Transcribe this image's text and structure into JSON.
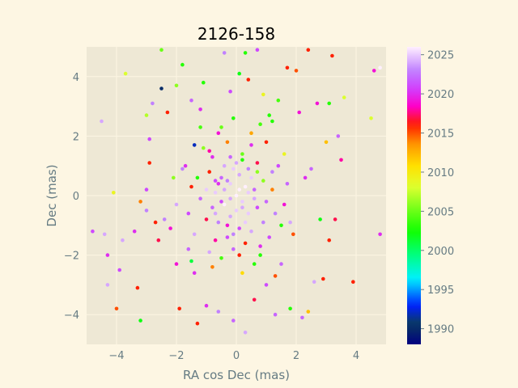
{
  "chart_data": {
    "type": "scatter",
    "title": "2126-158",
    "xlabel": "RA cos Dec (mas)",
    "ylabel": "Dec (mas)",
    "xlim": [
      -5,
      5
    ],
    "ylim": [
      -5,
      5
    ],
    "x_ticks": [
      -4,
      -2,
      0,
      2,
      4
    ],
    "y_ticks": [
      -4,
      -2,
      0,
      2,
      4
    ],
    "grid": true,
    "colorbar": {
      "label": "",
      "range": [
        1988,
        2026
      ],
      "ticks": [
        1990,
        1995,
        2000,
        2005,
        2010,
        2015,
        2020,
        2025
      ],
      "colormap": "gist_ncar"
    },
    "points": [
      [
        -4.8,
        -1.2,
        2021
      ],
      [
        -4.5,
        2.5,
        2024
      ],
      [
        -4.4,
        -1.3,
        2024
      ],
      [
        -4.3,
        -2.0,
        2020
      ],
      [
        -4.3,
        -3.0,
        2024
      ],
      [
        -4.1,
        0.1,
        2009
      ],
      [
        -4.0,
        -3.8,
        2015
      ],
      [
        -3.9,
        -2.5,
        2021
      ],
      [
        -3.8,
        -1.5,
        2024
      ],
      [
        -3.7,
        4.1,
        2008
      ],
      [
        -3.4,
        -1.2,
        2020
      ],
      [
        -3.3,
        -3.1,
        2016
      ],
      [
        -3.2,
        -0.2,
        2014
      ],
      [
        -3.2,
        -4.2,
        2002
      ],
      [
        -3.0,
        2.7,
        2007
      ],
      [
        -3.0,
        0.2,
        2021
      ],
      [
        -3.0,
        -0.5,
        2023
      ],
      [
        -2.9,
        1.9,
        2021
      ],
      [
        -2.9,
        1.1,
        2016
      ],
      [
        -2.8,
        3.1,
        2023
      ],
      [
        -2.7,
        -0.9,
        2016
      ],
      [
        -2.6,
        -1.5,
        2017
      ],
      [
        -2.5,
        3.6,
        1990
      ],
      [
        -2.5,
        4.9,
        2005
      ],
      [
        -2.4,
        -0.8,
        2023
      ],
      [
        -2.3,
        2.8,
        2016
      ],
      [
        -2.2,
        -1.1,
        2019
      ],
      [
        -2.1,
        0.6,
        2006
      ],
      [
        -2.0,
        3.7,
        2006
      ],
      [
        -2.0,
        -2.3,
        2019
      ],
      [
        -1.9,
        -3.8,
        2016
      ],
      [
        -1.8,
        4.4,
        2003
      ],
      [
        -1.7,
        1.0,
        2020
      ],
      [
        -1.6,
        -1.8,
        2022
      ],
      [
        -1.5,
        -2.2,
        2001
      ],
      [
        -1.5,
        3.2,
        2022
      ],
      [
        -1.4,
        1.7,
        1992
      ],
      [
        -1.3,
        -4.3,
        2016
      ],
      [
        -1.2,
        2.9,
        2020
      ],
      [
        -1.1,
        3.8,
        2003
      ],
      [
        -1.0,
        -3.7,
        2020
      ],
      [
        -0.9,
        1.5,
        2018
      ],
      [
        -0.8,
        -2.4,
        2014
      ],
      [
        -0.7,
        0.5,
        2021
      ],
      [
        -0.6,
        -3.9,
        2023
      ],
      [
        -0.5,
        2.3,
        2005
      ],
      [
        -0.4,
        4.8,
        2023
      ],
      [
        -0.3,
        -1.0,
        2019
      ],
      [
        -0.2,
        3.5,
        2021
      ],
      [
        -0.1,
        -4.2,
        2022
      ],
      [
        0.0,
        1.1,
        2024
      ],
      [
        0.1,
        4.1,
        2002
      ],
      [
        0.2,
        -2.6,
        2011
      ],
      [
        0.3,
        4.8,
        2003
      ],
      [
        0.3,
        -4.6,
        2024
      ],
      [
        0.4,
        3.9,
        2016
      ],
      [
        0.5,
        2.1,
        2013
      ],
      [
        0.6,
        -3.5,
        2017
      ],
      [
        0.7,
        4.9,
        2021
      ],
      [
        0.8,
        -2.0,
        2003
      ],
      [
        0.9,
        3.4,
        2009
      ],
      [
        1.0,
        -3.0,
        2021
      ],
      [
        1.1,
        2.7,
        2003
      ],
      [
        1.2,
        0.8,
        2023
      ],
      [
        1.3,
        -4.0,
        2022
      ],
      [
        1.4,
        3.2,
        2004
      ],
      [
        1.5,
        -2.3,
        2022
      ],
      [
        1.6,
        1.4,
        2009
      ],
      [
        1.7,
        4.3,
        2016
      ],
      [
        1.8,
        -3.8,
        2003
      ],
      [
        1.9,
        -1.3,
        2015
      ],
      [
        2.0,
        4.2,
        2015
      ],
      [
        2.1,
        2.8,
        2019
      ],
      [
        2.2,
        -4.1,
        2022
      ],
      [
        2.3,
        0.6,
        2020
      ],
      [
        2.4,
        4.9,
        2016
      ],
      [
        2.4,
        -3.9,
        2012
      ],
      [
        2.5,
        0.9,
        2022
      ],
      [
        2.6,
        -2.9,
        2024
      ],
      [
        2.7,
        3.1,
        2019
      ],
      [
        2.8,
        -0.8,
        2002
      ],
      [
        2.9,
        -2.8,
        2016
      ],
      [
        3.0,
        1.8,
        2012
      ],
      [
        3.1,
        -1.5,
        2016
      ],
      [
        3.1,
        3.1,
        2003
      ],
      [
        3.2,
        4.7,
        2016
      ],
      [
        3.3,
        -0.8,
        2017
      ],
      [
        3.4,
        2.0,
        2022
      ],
      [
        3.5,
        1.2,
        2018
      ],
      [
        3.6,
        3.3,
        2008
      ],
      [
        3.9,
        -2.9,
        2016
      ],
      [
        4.5,
        2.6,
        2008
      ],
      [
        4.6,
        4.2,
        2019
      ],
      [
        4.8,
        4.3,
        2026
      ],
      [
        4.8,
        -1.3,
        2020
      ],
      [
        -2.0,
        -0.3,
        2024
      ],
      [
        -1.8,
        0.9,
        2023
      ],
      [
        -1.6,
        -0.6,
        2021
      ],
      [
        -1.5,
        0.3,
        2016
      ],
      [
        -1.4,
        -1.3,
        2024
      ],
      [
        -1.3,
        0.6,
        2003
      ],
      [
        -1.2,
        -0.1,
        2022
      ],
      [
        -1.1,
        1.6,
        2006
      ],
      [
        -1.0,
        -0.8,
        2017
      ],
      [
        -1.0,
        0.2,
        2025
      ],
      [
        -0.9,
        -1.9,
        2024
      ],
      [
        -0.9,
        0.8,
        2016
      ],
      [
        -0.8,
        -0.4,
        2022
      ],
      [
        -0.8,
        1.3,
        2020
      ],
      [
        -0.7,
        -1.5,
        2018
      ],
      [
        -0.7,
        0.1,
        2025
      ],
      [
        -0.6,
        2.1,
        2019
      ],
      [
        -0.6,
        -0.9,
        2023
      ],
      [
        -0.5,
        0.6,
        2022
      ],
      [
        -0.5,
        -2.1,
        2004
      ],
      [
        -0.4,
        1.0,
        2024
      ],
      [
        -0.4,
        -0.3,
        2026
      ],
      [
        -0.3,
        1.8,
        2014
      ],
      [
        -0.3,
        -1.4,
        2021
      ],
      [
        -0.2,
        0.4,
        2025
      ],
      [
        -0.2,
        -0.7,
        2024
      ],
      [
        -0.1,
        2.6,
        2003
      ],
      [
        -0.1,
        -1.8,
        2022
      ],
      [
        0.0,
        0.0,
        2026
      ],
      [
        0.0,
        -0.5,
        2025
      ],
      [
        0.1,
        0.7,
        2024
      ],
      [
        0.1,
        -1.1,
        2021
      ],
      [
        0.2,
        1.4,
        2005
      ],
      [
        0.2,
        -0.2,
        2025
      ],
      [
        0.3,
        0.3,
        2026
      ],
      [
        0.3,
        -1.6,
        2016
      ],
      [
        0.4,
        0.9,
        2023
      ],
      [
        0.4,
        -0.6,
        2025
      ],
      [
        0.5,
        1.7,
        2020
      ],
      [
        0.5,
        -1.2,
        2024
      ],
      [
        0.6,
        0.2,
        2022
      ],
      [
        0.6,
        -2.3,
        2003
      ],
      [
        0.7,
        1.1,
        2017
      ],
      [
        0.7,
        -0.4,
        2021
      ],
      [
        0.8,
        2.4,
        2004
      ],
      [
        0.8,
        -1.7,
        2020
      ],
      [
        0.9,
        0.5,
        2006
      ],
      [
        0.9,
        -0.9,
        2023
      ],
      [
        1.0,
        1.8,
        2016
      ],
      [
        1.0,
        -0.2,
        2022
      ],
      [
        1.1,
        -1.4,
        2021
      ],
      [
        1.2,
        0.2,
        2014
      ],
      [
        1.3,
        -0.6,
        2023
      ],
      [
        1.4,
        1.0,
        2021
      ],
      [
        1.5,
        -1.0,
        2003
      ],
      [
        1.6,
        -0.3,
        2019
      ],
      [
        1.7,
        0.4,
        2022
      ],
      [
        1.8,
        -0.9,
        2024
      ],
      [
        -0.2,
        -0.1,
        2024
      ],
      [
        0.1,
        0.2,
        2026
      ],
      [
        -0.3,
        0.5,
        2023
      ],
      [
        0.2,
        -0.4,
        2024
      ],
      [
        -0.1,
        0.9,
        2025
      ],
      [
        0.4,
        0.1,
        2025
      ],
      [
        -0.5,
        -0.2,
        2021
      ],
      [
        0.5,
        0.6,
        2025
      ],
      [
        -0.4,
        0.2,
        2024
      ],
      [
        0.3,
        -0.9,
        2025
      ],
      [
        -0.6,
        0.4,
        2020
      ],
      [
        0.6,
        -0.1,
        2024
      ],
      [
        -0.2,
        1.3,
        2022
      ],
      [
        0.2,
        1.2,
        2003
      ],
      [
        -0.7,
        -0.6,
        2024
      ],
      [
        0.7,
        0.8,
        2006
      ],
      [
        -0.1,
        -1.3,
        2023
      ],
      [
        0.1,
        -2.0,
        2016
      ],
      [
        -1.2,
        2.3,
        2004
      ],
      [
        1.2,
        2.5,
        2003
      ],
      [
        -1.4,
        -2.6,
        2020
      ],
      [
        1.3,
        -2.7,
        2015
      ]
    ]
  }
}
